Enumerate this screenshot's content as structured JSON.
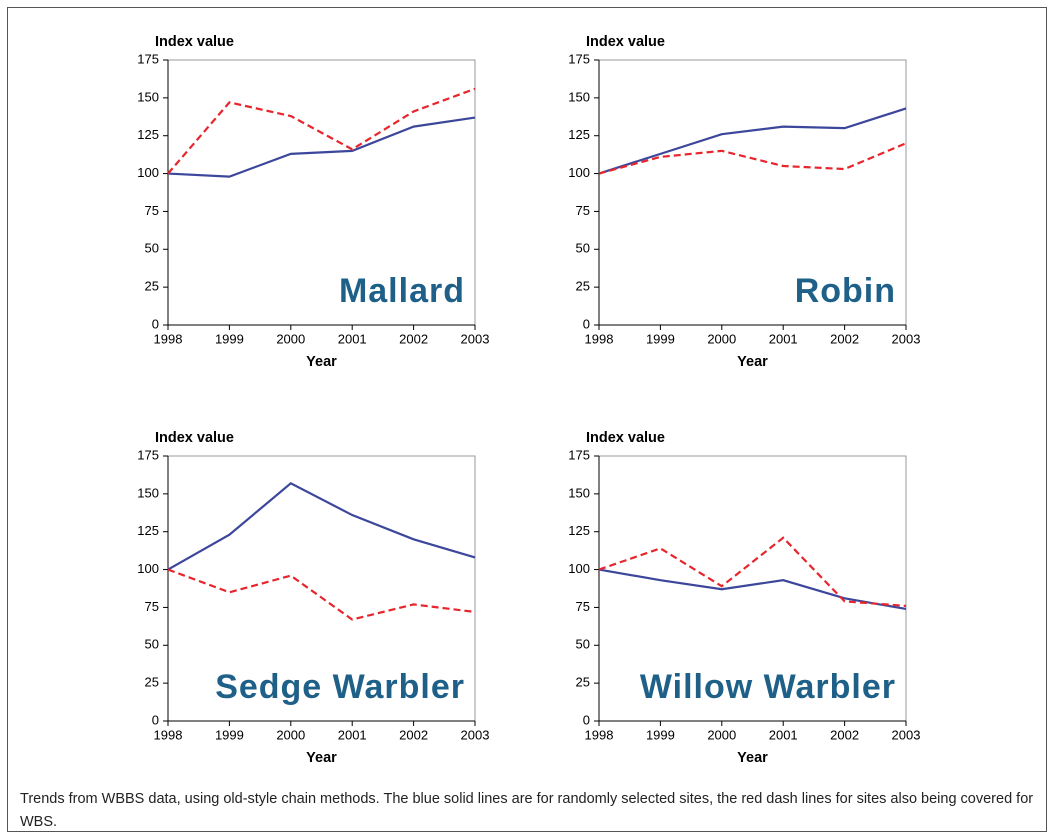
{
  "chart_data": [
    {
      "type": "line",
      "ylabel": "Index value",
      "xlabel": "Year",
      "annotation": "Mallard",
      "x": [
        1998,
        1999,
        2000,
        2001,
        2002,
        2003
      ],
      "xlim": [
        1998,
        2003
      ],
      "xticks": [
        1998,
        1999,
        2000,
        2001,
        2002,
        2003
      ],
      "ylim": [
        0,
        175
      ],
      "yticks": [
        0,
        25,
        50,
        75,
        100,
        125,
        150,
        175
      ],
      "series": [
        {
          "color": "#3c479b",
          "style": "solid",
          "values": [
            100,
            98,
            113,
            115,
            131,
            137
          ]
        },
        {
          "color": "#e6262c",
          "style": "dashed",
          "values": [
            100,
            147,
            138,
            116,
            141,
            156
          ]
        }
      ]
    },
    {
      "type": "line",
      "ylabel": "Index value",
      "xlabel": "Year",
      "annotation": "Robin",
      "x": [
        1998,
        1999,
        2000,
        2001,
        2002,
        2003
      ],
      "xlim": [
        1998,
        2003
      ],
      "xticks": [
        1998,
        1999,
        2000,
        2001,
        2002,
        2003
      ],
      "ylim": [
        0,
        175
      ],
      "yticks": [
        0,
        25,
        50,
        75,
        100,
        125,
        150,
        175
      ],
      "series": [
        {
          "color": "#3c479b",
          "style": "solid",
          "values": [
            100,
            113,
            126,
            131,
            130,
            143
          ]
        },
        {
          "color": "#e6262c",
          "style": "dashed",
          "values": [
            100,
            111,
            115,
            105,
            103,
            120
          ]
        }
      ]
    },
    {
      "type": "line",
      "ylabel": "Index value",
      "xlabel": "Year",
      "annotation": "Sedge Warbler",
      "x": [
        1998,
        1999,
        2000,
        2001,
        2002,
        2003
      ],
      "xlim": [
        1998,
        2003
      ],
      "xticks": [
        1998,
        1999,
        2000,
        2001,
        2002,
        2003
      ],
      "ylim": [
        0,
        175
      ],
      "yticks": [
        0,
        25,
        50,
        75,
        100,
        125,
        150,
        175
      ],
      "series": [
        {
          "color": "#3c479b",
          "style": "solid",
          "values": [
            100,
            123,
            157,
            136,
            120,
            108
          ]
        },
        {
          "color": "#e6262c",
          "style": "dashed",
          "values": [
            100,
            85,
            96,
            67,
            77,
            72
          ]
        }
      ]
    },
    {
      "type": "line",
      "ylabel": "Index value",
      "xlabel": "Year",
      "annotation": "Willow Warbler",
      "x": [
        1998,
        1999,
        2000,
        2001,
        2002,
        2003
      ],
      "xlim": [
        1998,
        2003
      ],
      "xticks": [
        1998,
        1999,
        2000,
        2001,
        2002,
        2003
      ],
      "ylim": [
        0,
        175
      ],
      "yticks": [
        0,
        25,
        50,
        75,
        100,
        125,
        150,
        175
      ],
      "series": [
        {
          "color": "#3c479b",
          "style": "solid",
          "values": [
            100,
            93,
            87,
            93,
            81,
            74
          ]
        },
        {
          "color": "#e6262c",
          "style": "dashed",
          "values": [
            100,
            114,
            89,
            121,
            79,
            76
          ]
        }
      ]
    }
  ],
  "caption": "Trends from WBBS data, using old-style chain methods. The blue solid lines are for randomly selected sites, the red dash lines for sites also being covered for WBS."
}
